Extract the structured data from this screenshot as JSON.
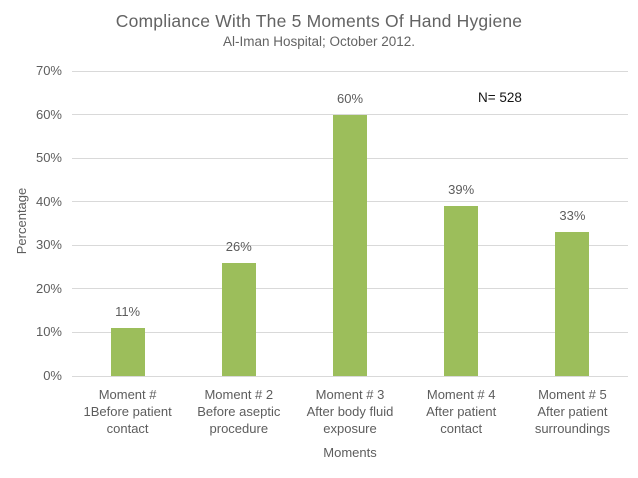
{
  "page": {
    "background": "#ffffff"
  },
  "chart_data": {
    "type": "bar",
    "title": "Compliance With The 5 Moments Of Hand Hygiene",
    "subtitle": "Al-Iman Hospital; October 2012.",
    "annotation": "N= 528",
    "xlabel": "Moments",
    "ylabel": "Percentage",
    "categories": [
      "Moment # 1Before patient contact",
      "Moment # 2 Before aseptic procedure",
      "Moment # 3 After body fluid exposure",
      "Moment # 4 After patient contact",
      "Moment # 5 After patient surroundings"
    ],
    "category_lines": [
      [
        "Moment #",
        "1Before patient",
        "contact"
      ],
      [
        "Moment # 2",
        "Before aseptic",
        "procedure"
      ],
      [
        "Moment # 3",
        "After body fluid",
        "exposure"
      ],
      [
        "Moment # 4",
        "After patient",
        "contact"
      ],
      [
        "Moment # 5",
        "After patient",
        "surroundings"
      ]
    ],
    "values": [
      11,
      26,
      60,
      39,
      33
    ],
    "value_labels": [
      "11%",
      "26%",
      "60%",
      "39%",
      "33%"
    ],
    "ylim": [
      0,
      70
    ],
    "ytick_step": 10,
    "ytick_labels": [
      "0%",
      "10%",
      "20%",
      "30%",
      "40%",
      "50%",
      "60%",
      "70%"
    ],
    "grid": true,
    "legend": false,
    "colors": {
      "bar": "#9cbe5b",
      "grid": "#d9d9d9",
      "text": "#5d5d5d",
      "title_text": "#636363",
      "annotation_text": "#141414"
    }
  }
}
